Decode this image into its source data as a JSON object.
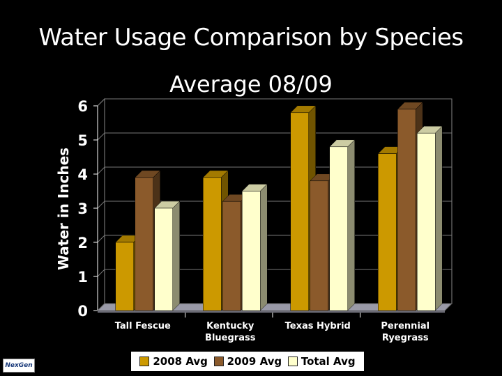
{
  "logo_text": "NexGen",
  "colors": {
    "s2008": "#cc9900",
    "s2009": "#8b5a2b",
    "total": "#ffffcc",
    "background": "#000000",
    "plot_floor": "#9a9aa8"
  },
  "chart_data": {
    "type": "bar",
    "title": "Water Usage Comparison by Species",
    "subtitle": "Average 08/09",
    "xlabel": "",
    "ylabel": "Water in Inches",
    "ylim": [
      0,
      6
    ],
    "yticks": [
      "0",
      "1",
      "2",
      "3",
      "4",
      "5",
      "6"
    ],
    "categories": [
      [
        "Tall Fescue"
      ],
      [
        "Kentucky",
        "Bluegrass"
      ],
      [
        "Texas Hybrid"
      ],
      [
        "Perennial",
        "Ryegrass"
      ]
    ],
    "series": [
      {
        "name": "2008 Avg",
        "values": [
          2.0,
          3.9,
          5.8,
          4.6
        ]
      },
      {
        "name": "2009 Avg",
        "values": [
          3.9,
          3.2,
          3.8,
          5.9
        ]
      },
      {
        "name": "Total Avg",
        "values": [
          3.0,
          3.5,
          4.8,
          5.2
        ]
      }
    ],
    "legend": "bottom"
  }
}
